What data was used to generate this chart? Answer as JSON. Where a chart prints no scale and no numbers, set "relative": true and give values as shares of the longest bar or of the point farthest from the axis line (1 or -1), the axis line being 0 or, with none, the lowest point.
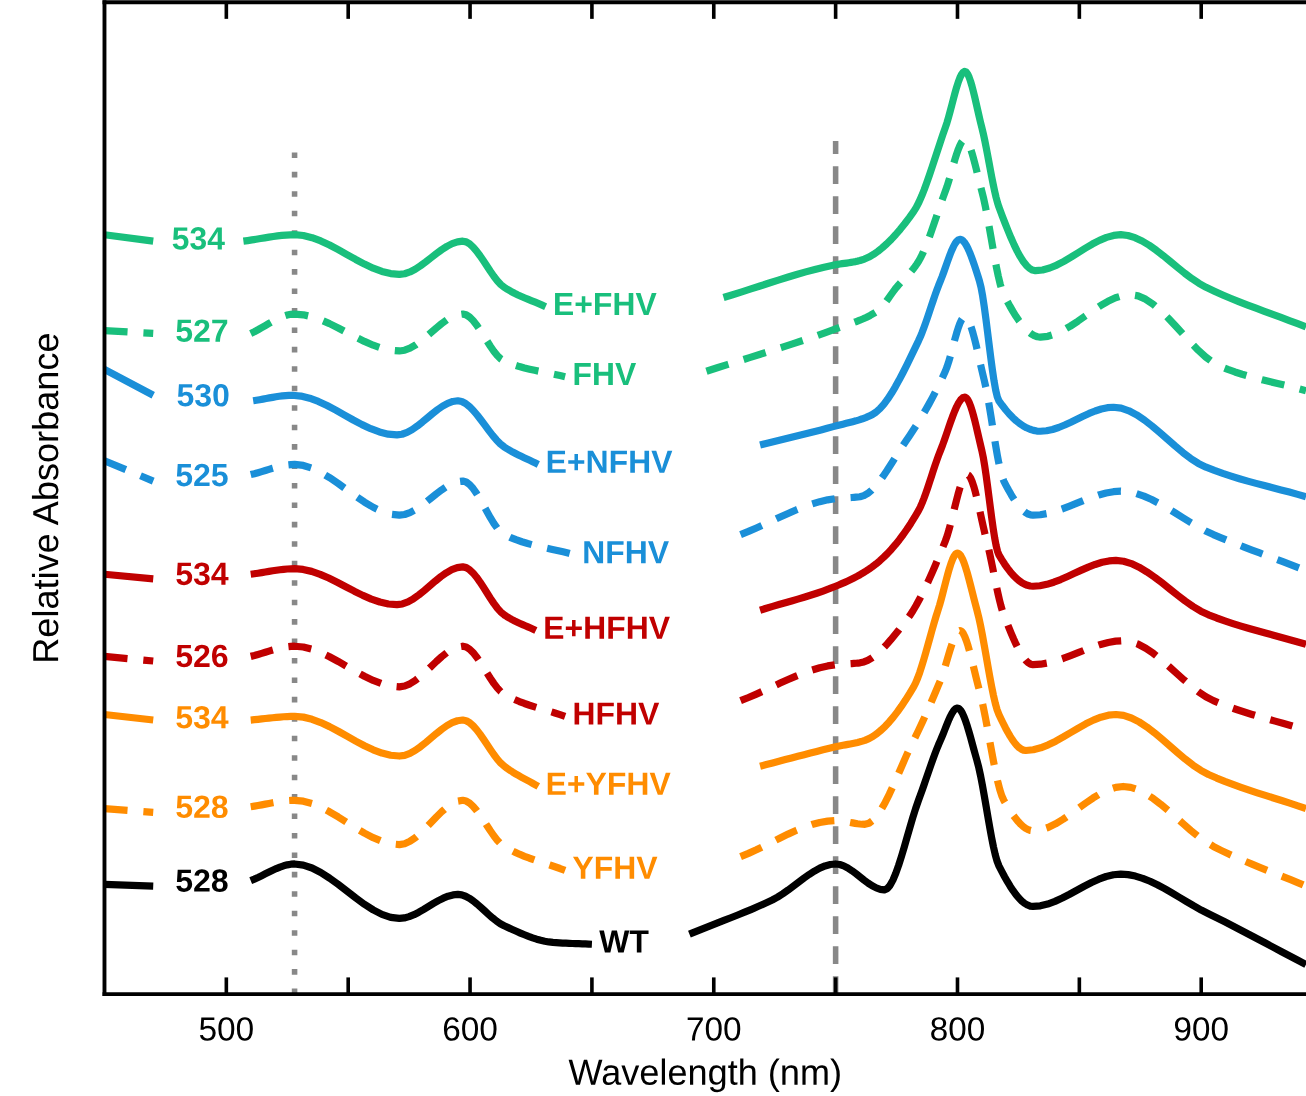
{
  "chart_data": {
    "type": "line",
    "relative": true,
    "xlabel": "Wavelength (nm)",
    "ylabel": "Relative Absorbance",
    "xlim": [
      450,
      943
    ],
    "xticks": [
      500,
      {
        "value": 550,
        "label": null
      },
      600,
      {
        "value": 650,
        "label": null
      },
      700,
      {
        "value": 750,
        "label": null
      },
      800,
      {
        "value": 850,
        "label": null
      },
      900
    ],
    "legend": false,
    "grid": false,
    "ref_lines": [
      {
        "axis": "x",
        "value": 528,
        "color": "#888888",
        "line_style": "dotted"
      },
      {
        "axis": "x",
        "value": 750,
        "color": "#888888",
        "line_style": "dashed"
      }
    ],
    "annotations": [
      "534",
      "527",
      "530",
      "525",
      "534",
      "526",
      "534",
      "528",
      "528"
    ],
    "series": [
      {
        "name": "E+FHV",
        "color": "#19bf7c",
        "line_style": "solid",
        "x": [
          450,
          470,
          490,
          507,
          528,
          571,
          597,
          614,
          631,
          670,
          704,
          749,
          760,
          782,
          795,
          803,
          810,
          817,
          832,
          867,
          902,
          943
        ],
        "values": [
          0.823,
          0.816,
          null,
          0.816,
          0.823,
          0.78,
          0.816,
          0.766,
          0.745,
          null,
          0.755,
          0.79,
          0.795,
          0.848,
          0.939,
          1.0,
          0.939,
          0.853,
          0.784,
          0.823,
          0.766,
          0.723
        ]
      },
      {
        "name": "FHV",
        "color": "#19bf7c",
        "line_style": "dashed",
        "x": [
          450,
          470,
          490,
          510,
          528,
          571,
          597,
          614,
          639,
          670,
          697,
          750,
          767,
          775,
          784,
          795,
          803,
          810,
          819,
          834,
          871,
          908,
          943
        ],
        "values": [
          0.719,
          0.716,
          null,
          0.716,
          0.737,
          0.697,
          0.737,
          0.686,
          0.669,
          null,
          0.675,
          0.721,
          0.74,
          0.766,
          0.794,
          0.87,
          0.926,
          0.87,
          0.758,
          0.712,
          0.758,
          0.68,
          0.654
        ]
      },
      {
        "name": "E+NFHV",
        "color": "#1a8fd8",
        "line_style": "solid",
        "x": [
          450,
          470,
          490,
          511,
          527,
          570,
          595,
          614,
          628,
          670,
          719,
          749,
          765,
          784,
          793,
          801,
          809,
          817,
          834,
          864,
          902,
          943
        ],
        "values": [
          0.677,
          0.649,
          null,
          0.643,
          0.649,
          0.606,
          0.643,
          0.593,
          0.574,
          null,
          0.595,
          0.615,
          0.628,
          0.708,
          0.773,
          0.818,
          0.773,
          0.643,
          0.61,
          0.636,
          0.571,
          0.539
        ]
      },
      {
        "name": "NFHV",
        "color": "#1a8fd8",
        "line_style": "dashed",
        "x": [
          450,
          470,
          490,
          510,
          528,
          571,
          597,
          614,
          643,
          680,
          711,
          750,
          760,
          779,
          795,
          803,
          811,
          819,
          831,
          867,
          905,
          943
        ],
        "values": [
          0.578,
          0.556,
          null,
          0.563,
          0.574,
          0.519,
          0.556,
          0.498,
          0.476,
          null,
          0.498,
          0.537,
          0.539,
          0.6,
          0.675,
          0.734,
          0.665,
          0.556,
          0.519,
          0.545,
          0.498,
          0.459
        ]
      },
      {
        "name": "E+HFHV",
        "color": "#c00000",
        "line_style": "solid",
        "x": [
          450,
          470,
          490,
          510,
          528,
          570,
          597,
          614,
          627,
          670,
          719,
          750,
          765,
          784,
          793,
          803,
          810,
          817,
          831,
          865,
          903,
          943
        ],
        "values": [
          0.455,
          0.45,
          null,
          0.455,
          0.461,
          0.422,
          0.463,
          0.411,
          0.394,
          null,
          0.416,
          0.442,
          0.463,
          0.524,
          0.589,
          0.647,
          0.589,
          0.476,
          0.442,
          0.47,
          0.411,
          0.379
        ]
      },
      {
        "name": "HFHV",
        "color": "#c00000",
        "line_style": "dashed",
        "x": [
          450,
          470,
          490,
          510,
          528,
          571,
          597,
          614,
          639,
          680,
          711,
          750,
          760,
          779,
          795,
          804,
          812,
          819,
          831,
          868,
          905,
          943
        ],
        "values": [
          0.366,
          0.361,
          null,
          0.366,
          0.377,
          0.333,
          0.377,
          0.325,
          0.301,
          null,
          0.318,
          0.357,
          0.359,
          0.405,
          0.491,
          0.563,
          0.491,
          0.411,
          0.357,
          0.383,
          0.318,
          0.286
        ]
      },
      {
        "name": "E+YFHV",
        "color": "#ff8c00",
        "line_style": "solid",
        "x": [
          450,
          470,
          490,
          510,
          528,
          571,
          597,
          614,
          628,
          670,
          719,
          750,
          762,
          782,
          792,
          800,
          808,
          817,
          828,
          865,
          903,
          943
        ],
        "values": [
          0.303,
          0.297,
          null,
          0.297,
          0.301,
          0.258,
          0.297,
          0.247,
          0.225,
          null,
          0.247,
          0.268,
          0.275,
          0.333,
          0.416,
          0.478,
          0.416,
          0.303,
          0.264,
          0.303,
          0.238,
          0.201
        ]
      },
      {
        "name": "YFHV",
        "color": "#ff8c00",
        "line_style": "dashed",
        "x": [
          450,
          470,
          490,
          510,
          528,
          571,
          597,
          614,
          639,
          680,
          711,
          750,
          762,
          782,
          793,
          801,
          809,
          819,
          831,
          868,
          905,
          943
        ],
        "values": [
          0.201,
          0.197,
          null,
          0.203,
          0.21,
          0.162,
          0.21,
          0.16,
          0.134,
          null,
          0.149,
          0.188,
          0.184,
          0.275,
          0.34,
          0.394,
          0.329,
          0.21,
          0.177,
          0.225,
          0.16,
          0.117
        ]
      },
      {
        "name": "WT",
        "color": "#000000",
        "line_style": "solid",
        "x": [
          450,
          470,
          490,
          510,
          528,
          571,
          595,
          614,
          634,
          650,
          670,
          690,
          724,
          750,
          770,
          784,
          793,
          800,
          808,
          817,
          831,
          867,
          903,
          943
        ],
        "values": [
          0.119,
          0.117,
          null,
          0.123,
          0.141,
          0.082,
          0.108,
          0.074,
          0.056,
          0.054,
          null,
          0.065,
          0.102,
          0.141,
          0.113,
          0.21,
          0.275,
          0.31,
          0.253,
          0.139,
          0.095,
          0.13,
          0.087,
          0.032
        ]
      }
    ]
  }
}
